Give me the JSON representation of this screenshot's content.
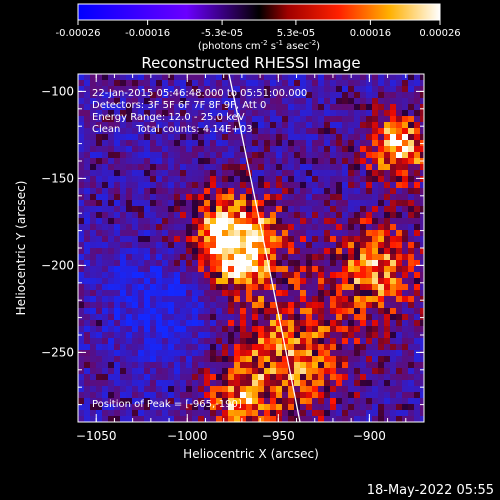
{
  "chart_data": {
    "type": "heatmap",
    "title": "Reconstructed RHESSI Image",
    "xlabel": "Heliocentric X (arcsec)",
    "ylabel": "Heliocentric Y (arcsec)",
    "xlim": [
      -1060,
      -870
    ],
    "ylim": [
      -290,
      -90
    ],
    "xticks": [
      -1050,
      -1000,
      -950,
      -900
    ],
    "yticks": [
      -100,
      -150,
      -200,
      -250
    ],
    "colorbar": {
      "ticks": [
        "-0.00026",
        "-0.00016",
        "-5.3e-05",
        "5.3e-05",
        "0.00016",
        "0.00026"
      ],
      "range": [
        -0.00026,
        0.00026
      ],
      "unit_parts": [
        "(photons cm",
        "-2",
        " s",
        "-1",
        " asec",
        "-2",
        ")"
      ]
    },
    "annotations": [
      "22-Jan-2015 05:46:48.000 to 05:51:00.000",
      "Detectors: 3F 5F 6F 7F 8F 9F, Att 0",
      "Energy Range: 12.0 - 25.0 keV",
      "Clean     Total counts: 4.14E+03"
    ],
    "peak_label": "Position of Peak = [-965,-190]",
    "peak": [
      -965,
      -190
    ],
    "colors": {
      "negative": "#1a1aff",
      "zero": "#000000",
      "positive": "#ff0000",
      "max": "#ffffff"
    }
  },
  "footer": {
    "timestamp": "18-May-2022 05:55"
  }
}
